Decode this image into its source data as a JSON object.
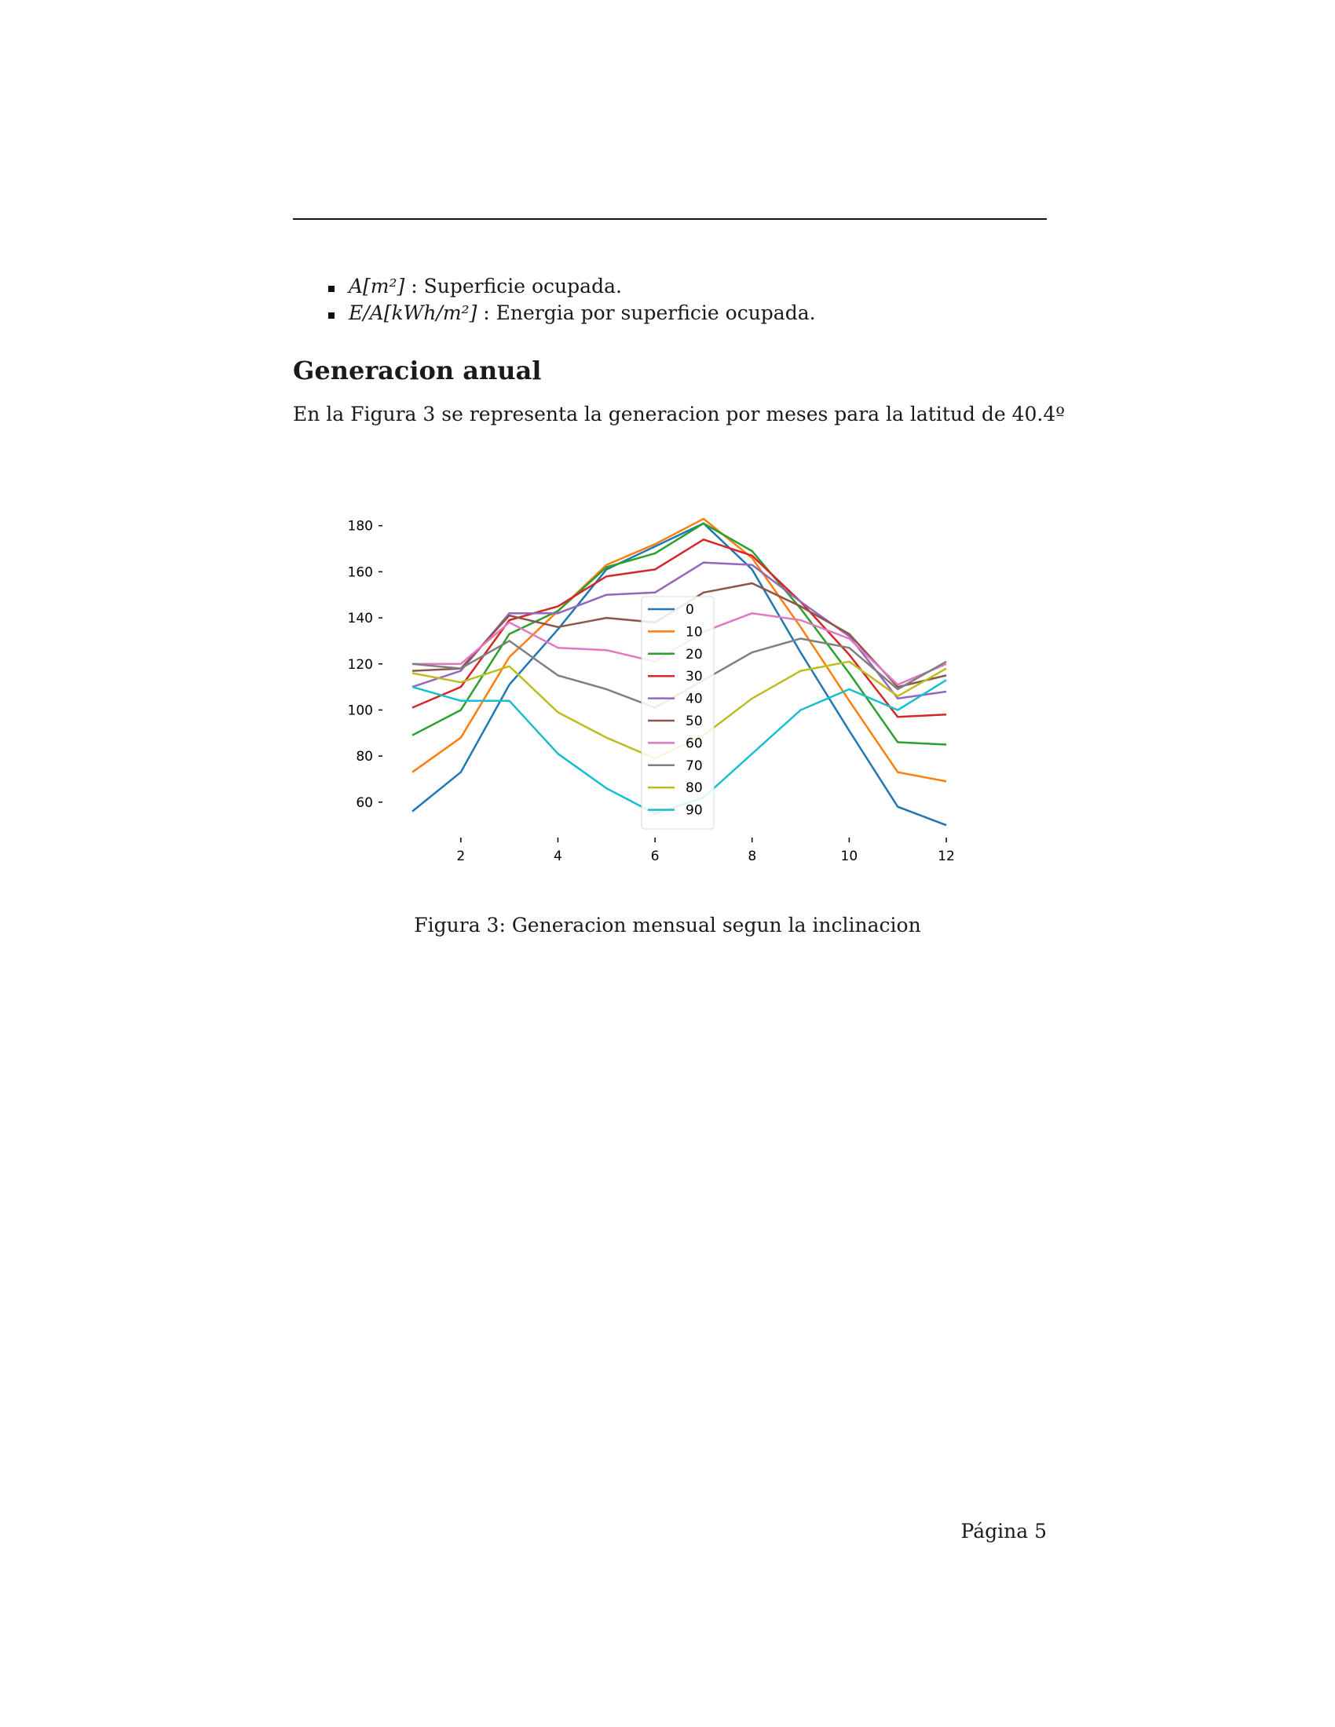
{
  "header": {},
  "bullets": [
    {
      "math": "A[m²]",
      "text": " : Superficie ocupada."
    },
    {
      "math": "E/A[kWh/m²]",
      "text": " : Energia por superficie ocupada."
    }
  ],
  "section": {
    "title": "Generacion anual",
    "paragraph": "En la Figura 3 se representa la generacion por meses para la latitud de 40.4º"
  },
  "figure": {
    "caption": "Figura 3: Generacion mensual segun la inclinacion"
  },
  "footer": {
    "page": "Página 5"
  },
  "chart_data": {
    "type": "line",
    "title": "",
    "xlabel": "",
    "ylabel": "",
    "x": [
      1,
      2,
      3,
      4,
      5,
      6,
      7,
      8,
      9,
      10,
      11,
      12
    ],
    "xticks": [
      2,
      4,
      6,
      8,
      10,
      12
    ],
    "yticks": [
      60,
      80,
      100,
      120,
      140,
      160,
      180
    ],
    "xlim": [
      1,
      12
    ],
    "ylim": [
      47,
      185
    ],
    "grid": false,
    "legend_position": "center",
    "series": [
      {
        "name": "0",
        "color": "#1f77b4",
        "values": [
          56,
          73,
          111,
          135,
          161,
          171,
          181,
          161,
          125,
          91,
          58,
          50
        ]
      },
      {
        "name": "10",
        "color": "#ff7f0e",
        "values": [
          73,
          88,
          123,
          143,
          163,
          172,
          183,
          166,
          136,
          104,
          73,
          69
        ]
      },
      {
        "name": "20",
        "color": "#2ca02c",
        "values": [
          89,
          100,
          133,
          143,
          162,
          168,
          181,
          169,
          144,
          116,
          86,
          85
        ]
      },
      {
        "name": "30",
        "color": "#d62728",
        "values": [
          101,
          110,
          139,
          145,
          158,
          161,
          174,
          167,
          147,
          124,
          97,
          98
        ]
      },
      {
        "name": "40",
        "color": "#9467bd",
        "values": [
          110,
          117,
          142,
          142,
          150,
          151,
          164,
          163,
          147,
          132,
          105,
          108
        ]
      },
      {
        "name": "50",
        "color": "#8c564b",
        "values": [
          117,
          118,
          141,
          136,
          140,
          138,
          151,
          155,
          145,
          133,
          110,
          115
        ]
      },
      {
        "name": "60",
        "color": "#e377c2",
        "values": [
          120,
          120,
          138,
          127,
          126,
          121,
          134,
          142,
          139,
          131,
          111,
          120
        ]
      },
      {
        "name": "70",
        "color": "#7f7f7f",
        "values": [
          120,
          118,
          130,
          115,
          109,
          101,
          113,
          125,
          131,
          127,
          109,
          121
        ]
      },
      {
        "name": "80",
        "color": "#bcbd22",
        "values": [
          116,
          112,
          119,
          99,
          88,
          79,
          89,
          105,
          117,
          121,
          106,
          118
        ]
      },
      {
        "name": "90",
        "color": "#17becf",
        "values": [
          110,
          104,
          104,
          81,
          66,
          55,
          62,
          81,
          100,
          109,
          100,
          113
        ]
      }
    ]
  }
}
